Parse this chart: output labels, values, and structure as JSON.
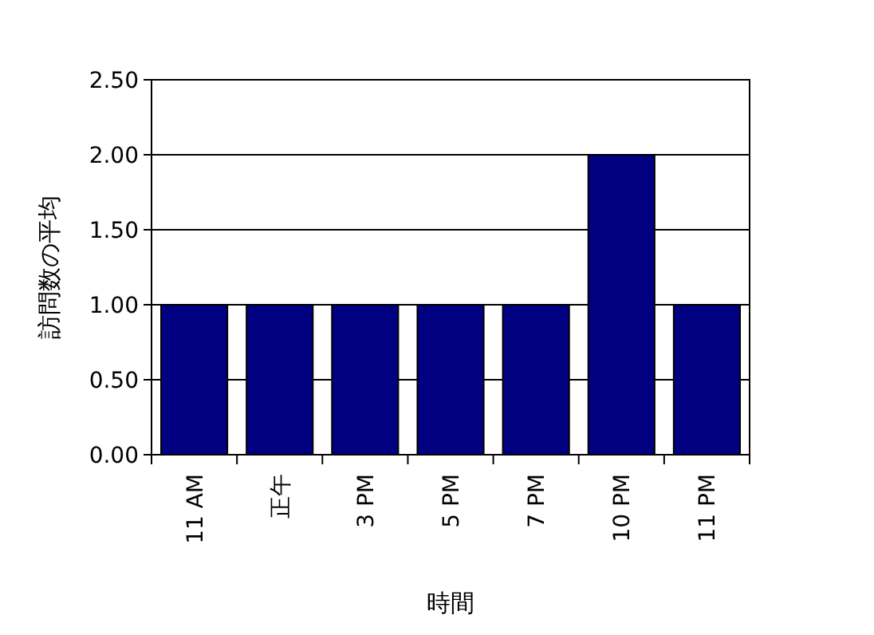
{
  "chart_data": {
    "type": "bar",
    "xlabel": "時間",
    "ylabel": "訪問数の平均",
    "categories": [
      "11 AM",
      "正午",
      "3 PM",
      "5 PM",
      "7 PM",
      "10 PM",
      "11 PM"
    ],
    "values": [
      1,
      1,
      1,
      1,
      1,
      2,
      1
    ],
    "color": "#000080",
    "ylim": [
      0,
      2.5
    ],
    "yticks": [
      {
        "value": 0,
        "label": "0.00"
      },
      {
        "value": 0.5,
        "label": "0.50"
      },
      {
        "value": 1,
        "label": "1.00"
      },
      {
        "value": 1.5,
        "label": "1.50"
      },
      {
        "value": 2,
        "label": "2.00"
      },
      {
        "value": 2.5,
        "label": "2.50"
      }
    ],
    "grid": "y"
  }
}
